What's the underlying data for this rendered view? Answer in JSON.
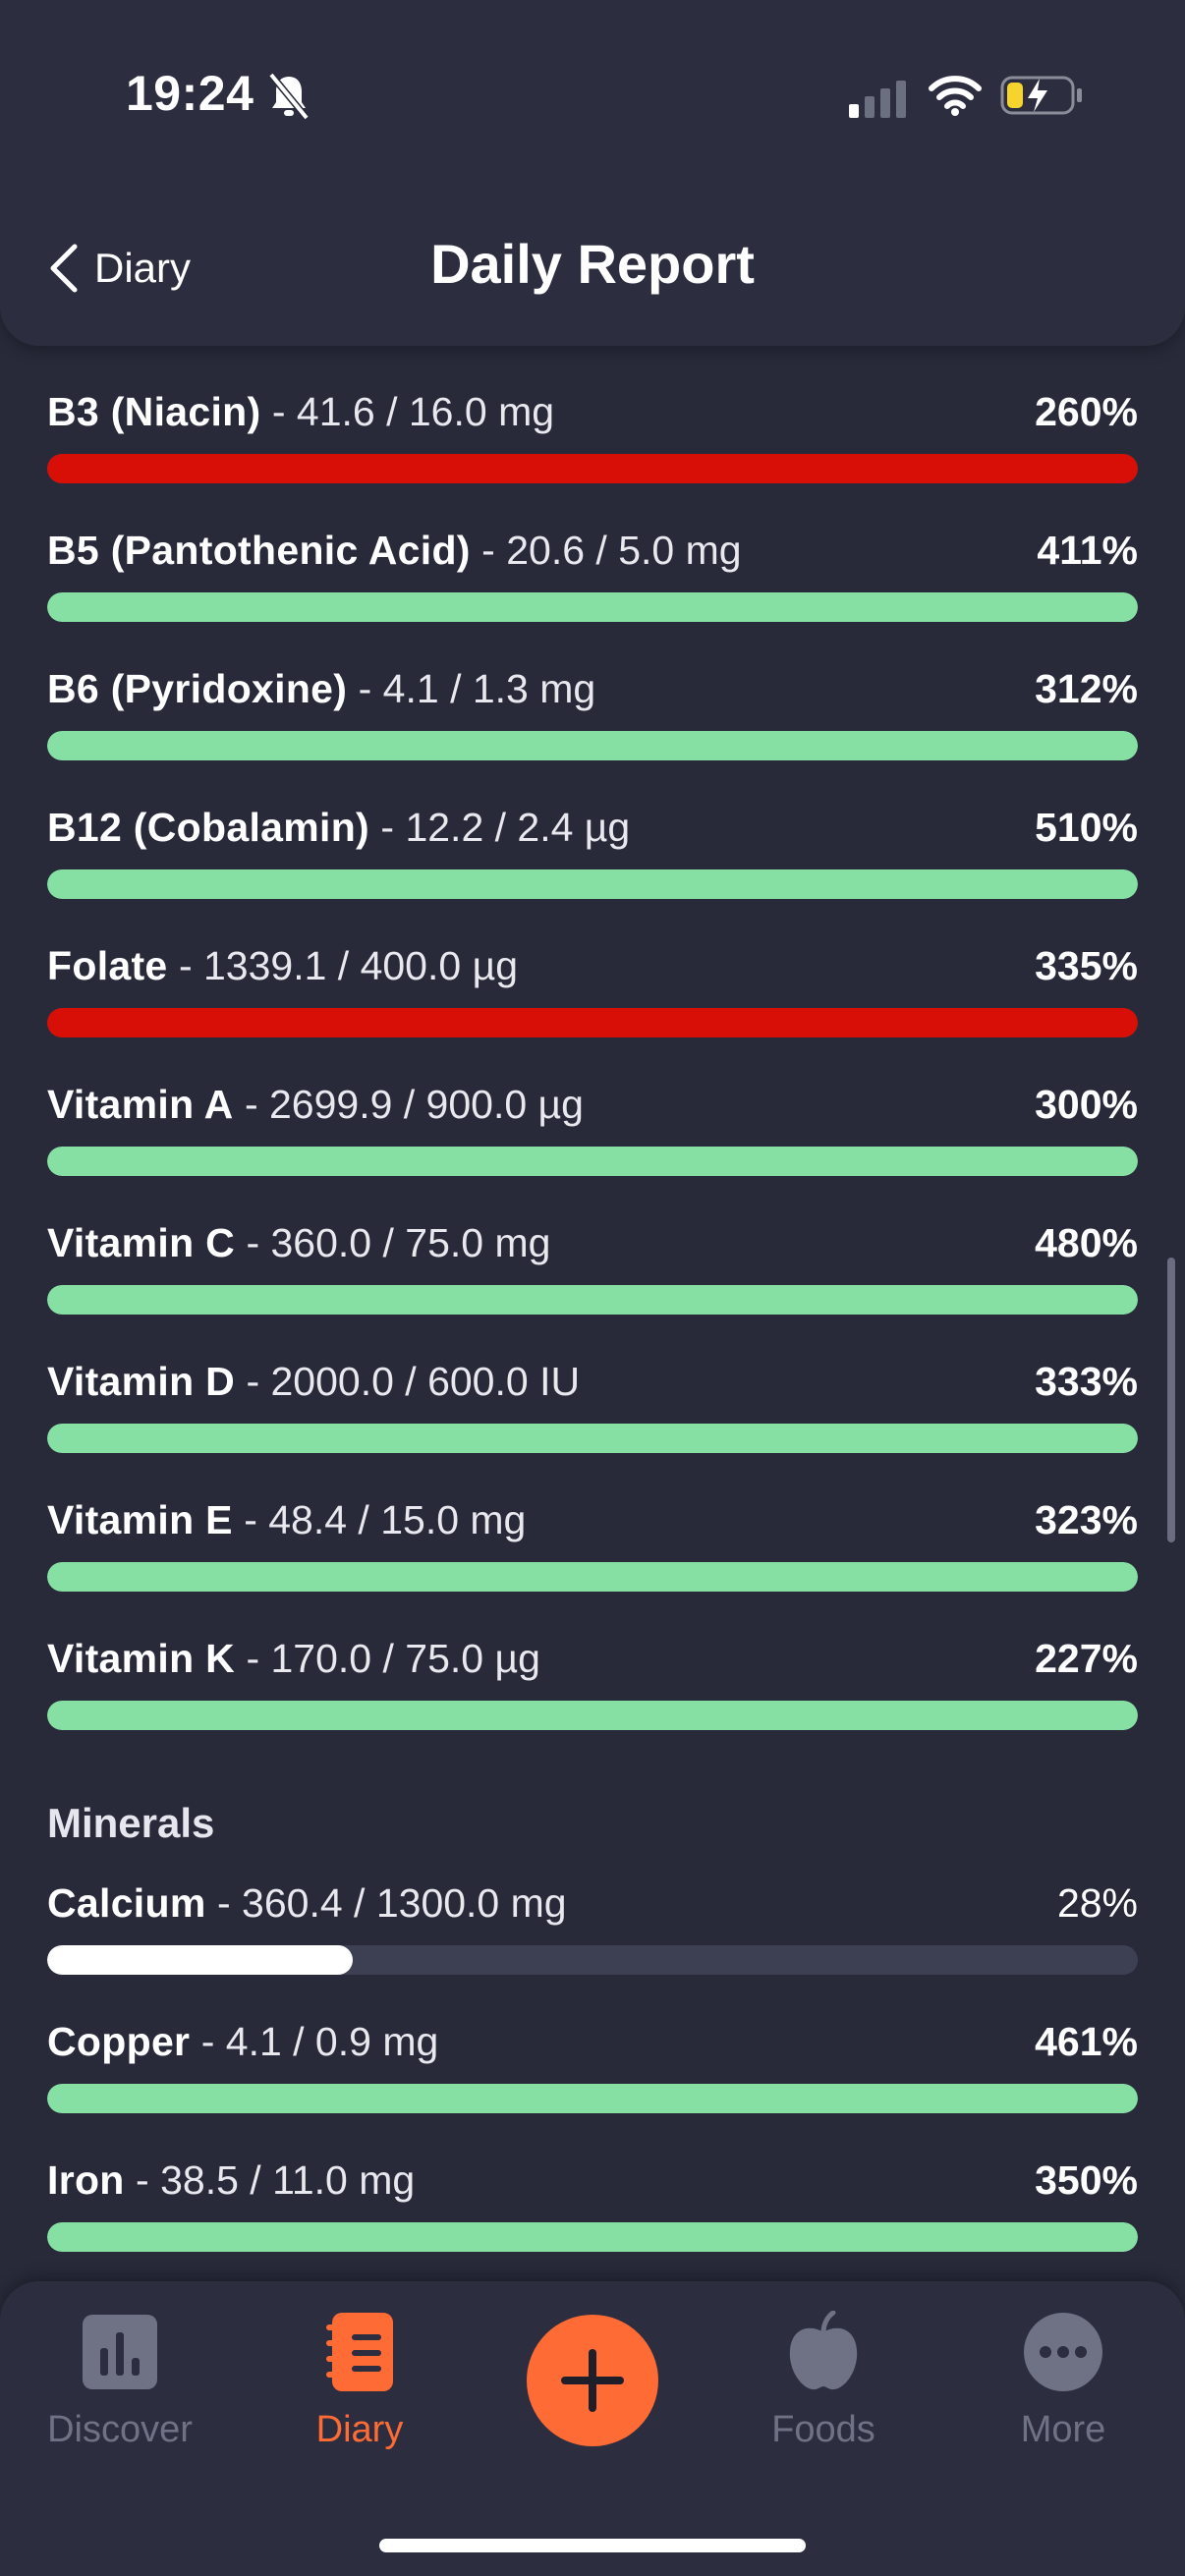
{
  "status_bar": {
    "time": "19:24"
  },
  "header": {
    "back_label": "Diary",
    "title": "Daily Report"
  },
  "colors": {
    "over": "#d70f06",
    "good": "#86dfa3",
    "low": "#ffffff",
    "track": "#3d4052",
    "accent": "#ff6b35"
  },
  "nutrients": [
    {
      "name": "B3 (Niacin)",
      "amount": "- 41.6 / 16.0 mg",
      "percent": "260%",
      "fill_fraction": 1.0,
      "status": "over"
    },
    {
      "name": "B5 (Pantothenic Acid)",
      "amount": "- 20.6 / 5.0 mg",
      "percent": "411%",
      "fill_fraction": 1.0,
      "status": "good"
    },
    {
      "name": "B6 (Pyridoxine)",
      "amount": "- 4.1 / 1.3 mg",
      "percent": "312%",
      "fill_fraction": 1.0,
      "status": "good"
    },
    {
      "name": "B12 (Cobalamin)",
      "amount": "- 12.2 / 2.4 µg",
      "percent": "510%",
      "fill_fraction": 1.0,
      "status": "good"
    },
    {
      "name": "Folate",
      "amount": "- 1339.1 / 400.0 µg",
      "percent": "335%",
      "fill_fraction": 1.0,
      "status": "over"
    },
    {
      "name": "Vitamin A",
      "amount": "- 2699.9 / 900.0 µg",
      "percent": "300%",
      "fill_fraction": 1.0,
      "status": "good"
    },
    {
      "name": "Vitamin C",
      "amount": "- 360.0 / 75.0 mg",
      "percent": "480%",
      "fill_fraction": 1.0,
      "status": "good"
    },
    {
      "name": "Vitamin D",
      "amount": "- 2000.0 / 600.0 IU",
      "percent": "333%",
      "fill_fraction": 1.0,
      "status": "good"
    },
    {
      "name": "Vitamin E",
      "amount": "- 48.4 / 15.0 mg",
      "percent": "323%",
      "fill_fraction": 1.0,
      "status": "good"
    },
    {
      "name": "Vitamin K",
      "amount": "- 170.0 / 75.0 µg",
      "percent": "227%",
      "fill_fraction": 1.0,
      "status": "good"
    }
  ],
  "minerals_section": {
    "title": "Minerals"
  },
  "minerals": [
    {
      "name": "Calcium",
      "amount": "- 360.4 / 1300.0 mg",
      "percent": "28%",
      "fill_fraction": 0.28,
      "status": "low"
    },
    {
      "name": "Copper",
      "amount": "- 4.1 / 0.9 mg",
      "percent": "461%",
      "fill_fraction": 1.0,
      "status": "good"
    },
    {
      "name": "Iron",
      "amount": "- 38.5 / 11.0 mg",
      "percent": "350%",
      "fill_fraction": 1.0,
      "status": "good"
    }
  ],
  "bottom_nav": {
    "items": [
      {
        "label": "Discover",
        "icon": "bar-chart-icon"
      },
      {
        "label": "Diary",
        "icon": "notebook-icon"
      },
      {
        "label": "Foods",
        "icon": "apple-icon"
      },
      {
        "label": "More",
        "icon": "more-icon"
      }
    ],
    "add_icon": "plus-icon"
  }
}
